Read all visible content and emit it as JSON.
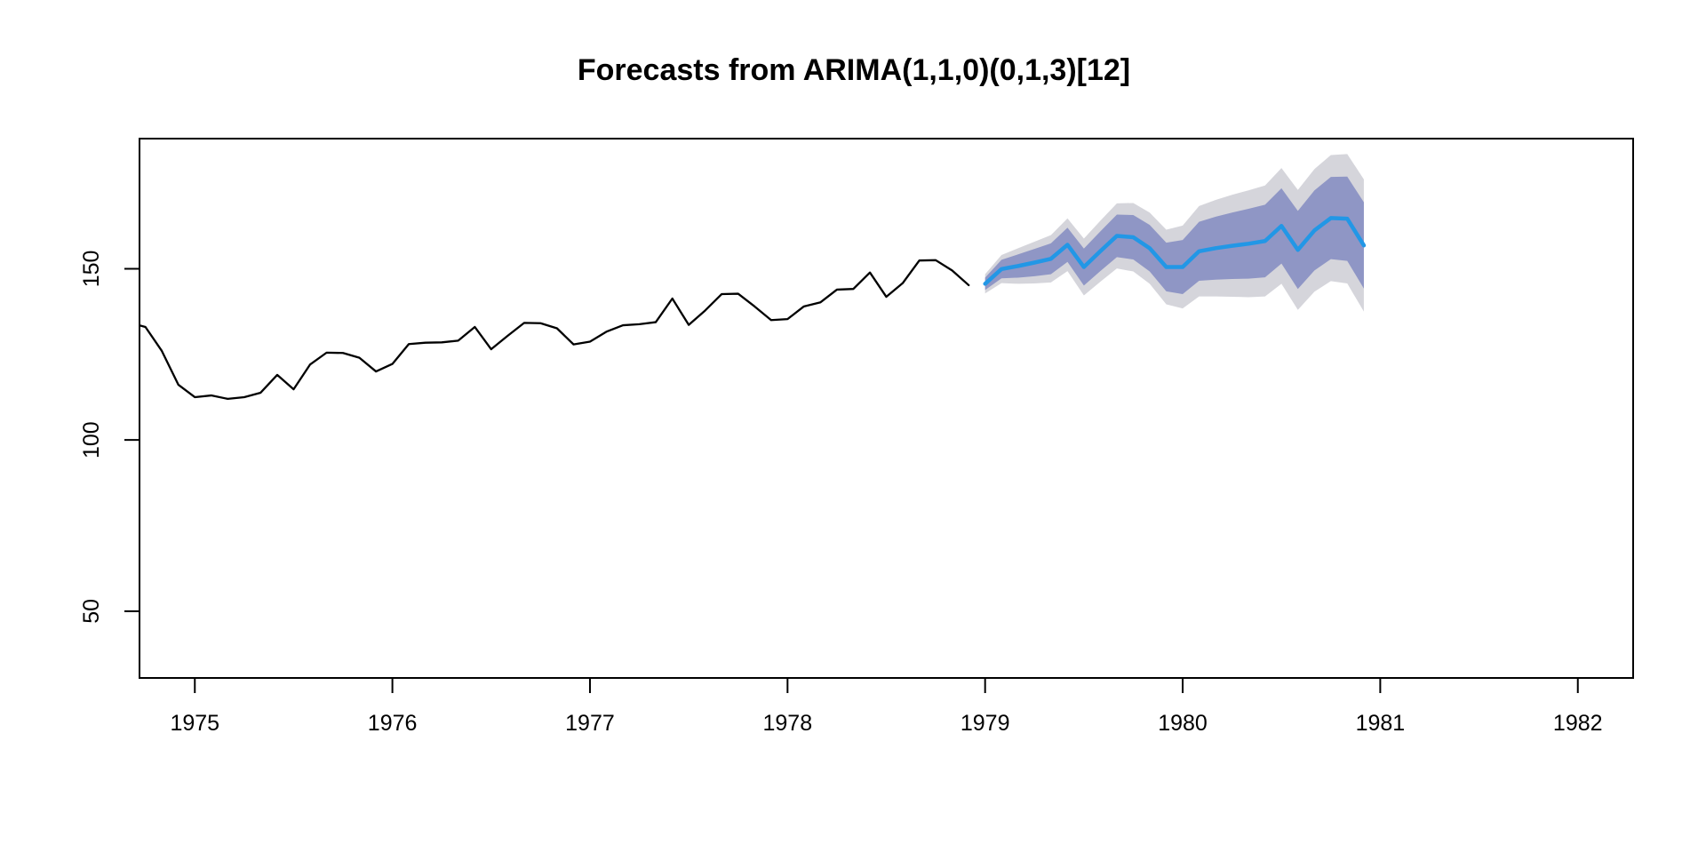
{
  "title": "Forecasts from ARIMA(1,1,0)(0,1,3)[12]",
  "colors": {
    "background": "#FFFFFF",
    "axis": "#000000",
    "observed_line": "#000000",
    "forecast_line": "#2297E6",
    "band_80": "#8F96C5",
    "band_95": "#D5D5DB"
  },
  "chart_data": {
    "type": "line",
    "title": "Forecasts from ARIMA(1,1,0)(0,1,3)[12]",
    "xlabel": "",
    "ylabel": "",
    "grid": false,
    "legend_position": "none",
    "x_axis": {
      "lim": [
        1974.72,
        1982.28
      ],
      "ticks": [
        1975,
        1976,
        1977,
        1978,
        1979,
        1980,
        1981,
        1982
      ],
      "tick_labels": [
        "1975",
        "1976",
        "1977",
        "1978",
        "1979",
        "1980",
        "1981",
        "1982"
      ]
    },
    "y_axis": {
      "lim": [
        30.5,
        188
      ],
      "ticks": [
        50,
        100,
        150
      ],
      "tick_labels": [
        "50",
        "100",
        "150"
      ]
    },
    "series": [
      {
        "name": "observed",
        "color_key": "observed_line",
        "x": [
          1974.667,
          1974.75,
          1974.833,
          1974.917,
          1975.0,
          1975.083,
          1975.167,
          1975.25,
          1975.333,
          1975.417,
          1975.5,
          1975.583,
          1975.667,
          1975.75,
          1975.833,
          1975.917,
          1976.0,
          1976.083,
          1976.167,
          1976.25,
          1976.333,
          1976.417,
          1976.5,
          1976.583,
          1976.667,
          1976.75,
          1976.833,
          1976.917,
          1977.0,
          1977.083,
          1977.167,
          1977.25,
          1977.333,
          1977.417,
          1977.5,
          1977.583,
          1977.667,
          1977.75,
          1977.833,
          1977.917,
          1978.0,
          1978.083,
          1978.167,
          1978.25,
          1978.333,
          1978.417,
          1978.5,
          1978.583,
          1978.667,
          1978.75,
          1978.833,
          1978.917
        ],
        "y": [
          134.3,
          133.0,
          126.0,
          116.1,
          112.5,
          113.0,
          112.0,
          112.5,
          113.8,
          119.0,
          114.8,
          122.0,
          125.5,
          125.4,
          124.0,
          120.0,
          122.2,
          128.0,
          128.4,
          128.5,
          129.0,
          133.0,
          126.5,
          130.4,
          134.2,
          134.1,
          132.6,
          127.9,
          128.7,
          131.6,
          133.5,
          133.8,
          134.4,
          141.3,
          133.6,
          137.8,
          142.6,
          142.7,
          139.0,
          135.0,
          135.3,
          139.0,
          140.2,
          143.9,
          144.1,
          148.9,
          141.8,
          145.8,
          152.4,
          152.5,
          149.5,
          145.2
        ]
      },
      {
        "name": "forecast",
        "color_key": "forecast_line",
        "x": [
          1979.0,
          1979.083,
          1979.167,
          1979.25,
          1979.333,
          1979.417,
          1979.5,
          1979.583,
          1979.667,
          1979.75,
          1979.833,
          1979.917,
          1980.0,
          1980.083,
          1980.167,
          1980.25,
          1980.333,
          1980.417,
          1980.5,
          1980.583,
          1980.667,
          1980.75,
          1980.833,
          1980.917
        ],
        "y": [
          145.6,
          149.9,
          150.8,
          151.8,
          152.9,
          157.0,
          150.5,
          155.1,
          159.6,
          159.2,
          156.0,
          150.5,
          150.5,
          155.1,
          156.0,
          156.7,
          157.3,
          158.1,
          162.5,
          155.5,
          161.2,
          164.8,
          164.6,
          156.8
        ]
      }
    ],
    "intervals": {
      "x": [
        1979.0,
        1979.083,
        1979.167,
        1979.25,
        1979.333,
        1979.417,
        1979.5,
        1979.583,
        1979.667,
        1979.75,
        1979.833,
        1979.917,
        1980.0,
        1980.083,
        1980.167,
        1980.25,
        1980.333,
        1980.417,
        1980.5,
        1980.583,
        1980.667,
        1980.75,
        1980.833,
        1980.917
      ],
      "level_95": {
        "color_key": "band_95",
        "lo": [
          142.8,
          145.8,
          145.6,
          145.7,
          146.0,
          149.3,
          142.2,
          146.2,
          150.1,
          149.2,
          145.6,
          139.6,
          138.4,
          141.9,
          141.9,
          141.8,
          141.7,
          141.9,
          145.6,
          138.0,
          143.3,
          146.4,
          145.7,
          137.5
        ],
        "hi": [
          148.4,
          154.0,
          156.0,
          157.9,
          159.8,
          164.7,
          158.8,
          164.0,
          169.1,
          169.2,
          166.4,
          161.4,
          162.6,
          168.3,
          170.1,
          171.6,
          172.9,
          174.3,
          179.4,
          173.0,
          179.1,
          183.2,
          183.5,
          176.1
        ]
      },
      "level_80": {
        "color_key": "band_80",
        "lo": [
          143.8,
          147.2,
          147.4,
          147.8,
          148.4,
          152.0,
          145.1,
          149.3,
          153.4,
          152.7,
          149.2,
          143.4,
          142.6,
          146.5,
          146.8,
          147.0,
          147.1,
          147.5,
          151.5,
          144.1,
          149.5,
          152.8,
          152.3,
          144.2
        ],
        "hi": [
          147.4,
          152.6,
          154.2,
          155.8,
          157.4,
          162.0,
          155.9,
          160.9,
          165.8,
          165.7,
          162.8,
          157.6,
          158.4,
          163.7,
          165.2,
          166.4,
          167.5,
          168.7,
          173.5,
          166.9,
          172.9,
          176.8,
          176.9,
          169.4
        ]
      }
    }
  }
}
